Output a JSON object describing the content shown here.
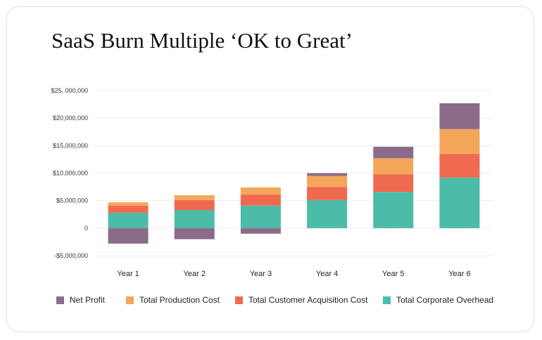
{
  "title": "SaaS Burn Multiple ‘OK to Great’",
  "chart_data": {
    "type": "bar",
    "stacked": true,
    "categories": [
      "Year 1",
      "Year 2",
      "Year 3",
      "Year 4",
      "Year 5",
      "Year 6"
    ],
    "series": [
      {
        "name": "Total Corporate Overhead",
        "color": "#4cbba7",
        "values": [
          2800000,
          3300000,
          4100000,
          5100000,
          6600000,
          9200000
        ]
      },
      {
        "name": "Total Customer Acquisition Cost",
        "color": "#f06a4f",
        "values": [
          1300000,
          1800000,
          2000000,
          2400000,
          3200000,
          4300000
        ]
      },
      {
        "name": "Total Production Cost",
        "color": "#f4a75a",
        "values": [
          600000,
          900000,
          1300000,
          2000000,
          2900000,
          4500000
        ]
      },
      {
        "name": "Net Profit",
        "color": "#8c6b8a",
        "values": [
          -2800000,
          -2000000,
          -1000000,
          500000,
          2100000,
          4700000
        ]
      }
    ],
    "legend_order": [
      "Net Profit",
      "Total Production Cost",
      "Total Customer Acquisition Cost",
      "Total Corporate Overhead"
    ],
    "ylim": [
      -5000000,
      25000000
    ],
    "yticks": [
      25000000,
      20000000,
      15000000,
      10000000,
      5000000,
      0,
      -5000000
    ],
    "ytick_labels": [
      "$25, 000,000",
      "$20,000,000",
      "$15,000,000",
      "$10,000,000",
      "$5,000,000",
      "0",
      "-$5,000,000"
    ],
    "xlabel": "",
    "ylabel": "",
    "grid": true,
    "legend_position": "bottom"
  }
}
